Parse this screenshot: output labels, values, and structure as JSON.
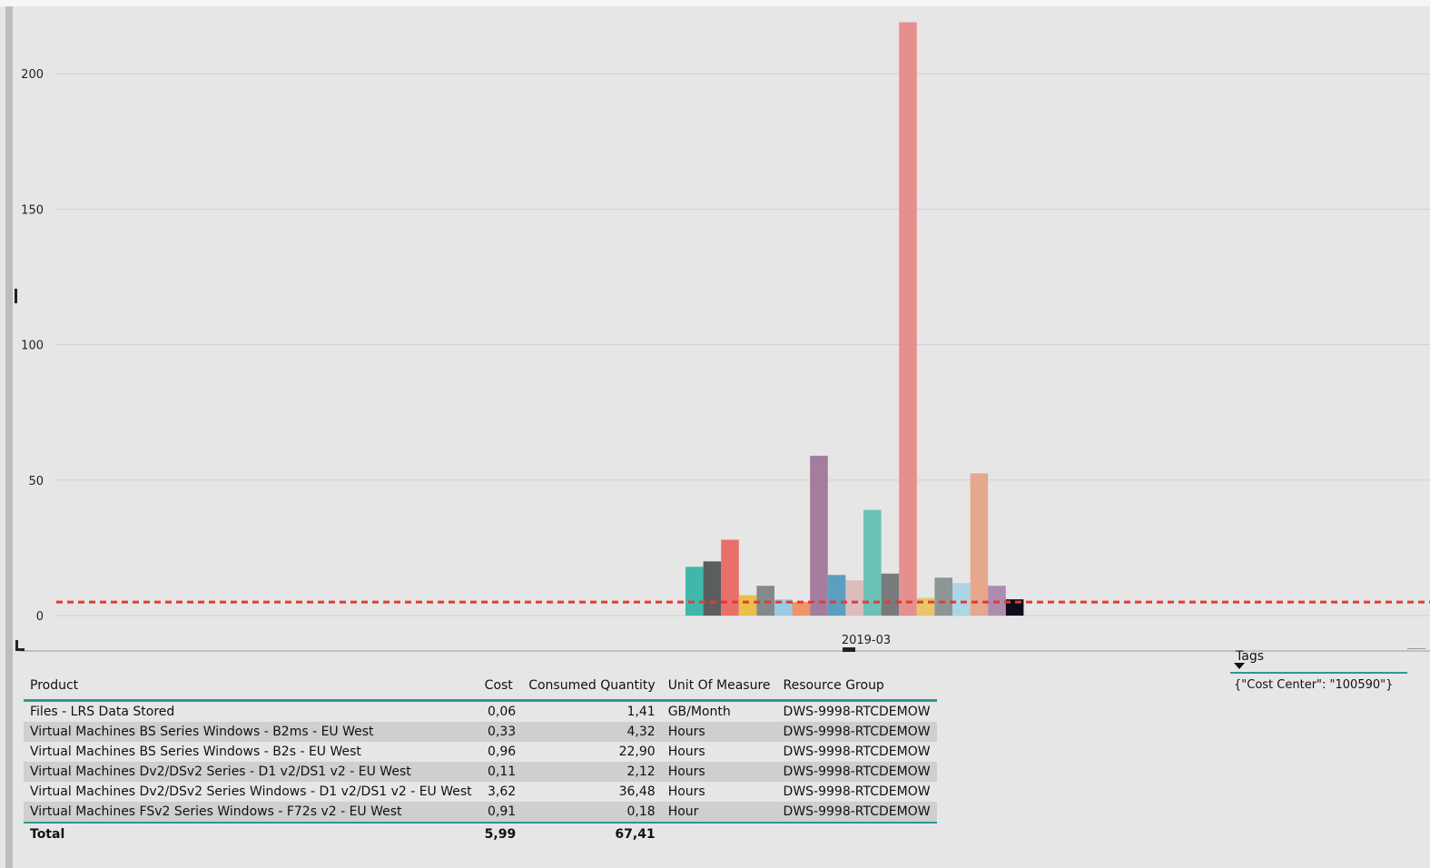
{
  "chart_data": {
    "type": "bar",
    "categories": [
      "2019-03"
    ],
    "ylim": [
      0,
      220
    ],
    "yticks": [
      0,
      50,
      100,
      150,
      200
    ],
    "grid": true,
    "reference_line": {
      "value": 5,
      "color": "#e53935",
      "style": "dashed"
    },
    "series": [
      {
        "value": 18,
        "color": "#3fb8ac"
      },
      {
        "value": 20,
        "color": "#5a5e5f"
      },
      {
        "value": 28,
        "color": "#e8706b"
      },
      {
        "value": 7.5,
        "color": "#e8c04a"
      },
      {
        "value": 11,
        "color": "#848a8a"
      },
      {
        "value": 6,
        "color": "#9bcbe2"
      },
      {
        "value": 5,
        "color": "#ef9466"
      },
      {
        "value": 59,
        "color": "#a47d9e"
      },
      {
        "value": 15,
        "color": "#5b9ec0"
      },
      {
        "value": 13,
        "color": "#dcbcbc"
      },
      {
        "value": 39,
        "color": "#6dc2b8"
      },
      {
        "value": 15.5,
        "color": "#777b7b"
      },
      {
        "value": 219,
        "color": "#e58f8f"
      },
      {
        "value": 6.5,
        "color": "#e8c66a"
      },
      {
        "value": 14,
        "color": "#8e9595"
      },
      {
        "value": 12,
        "color": "#acd6e6"
      },
      {
        "value": 52.5,
        "color": "#e6a88c"
      },
      {
        "value": 11,
        "color": "#ae8cad"
      },
      {
        "value": 6,
        "color": "#0d0d1c"
      }
    ]
  },
  "table": {
    "columns": [
      "Product",
      "Cost",
      "Consumed Quantity",
      "Unit Of Measure",
      "Resource Group"
    ],
    "rows": [
      [
        "Files - LRS Data Stored",
        "0,06",
        "1,41",
        "GB/Month",
        "DWS-9998-RTCDEMOW"
      ],
      [
        "Virtual Machines BS Series Windows - B2ms - EU West",
        "0,33",
        "4,32",
        "Hours",
        "DWS-9998-RTCDEMOW"
      ],
      [
        "Virtual Machines BS Series Windows - B2s - EU West",
        "0,96",
        "22,90",
        "Hours",
        "DWS-9998-RTCDEMOW"
      ],
      [
        "Virtual Machines Dv2/DSv2 Series - D1 v2/DS1 v2 - EU West",
        "0,11",
        "2,12",
        "Hours",
        "DWS-9998-RTCDEMOW"
      ],
      [
        "Virtual Machines Dv2/DSv2 Series Windows - D1 v2/DS1 v2 - EU West",
        "3,62",
        "36,48",
        "Hours",
        "DWS-9998-RTCDEMOW"
      ],
      [
        "Virtual Machines FSv2 Series Windows - F72s v2 - EU West",
        "0,91",
        "0,18",
        "Hour",
        "DWS-9998-RTCDEMOW"
      ]
    ],
    "total": {
      "label": "Total",
      "cost": "5,99",
      "quantity": "67,41"
    }
  },
  "tags": {
    "header": "Tags",
    "value": "{\"Cost Center\": \"100590\"}"
  }
}
